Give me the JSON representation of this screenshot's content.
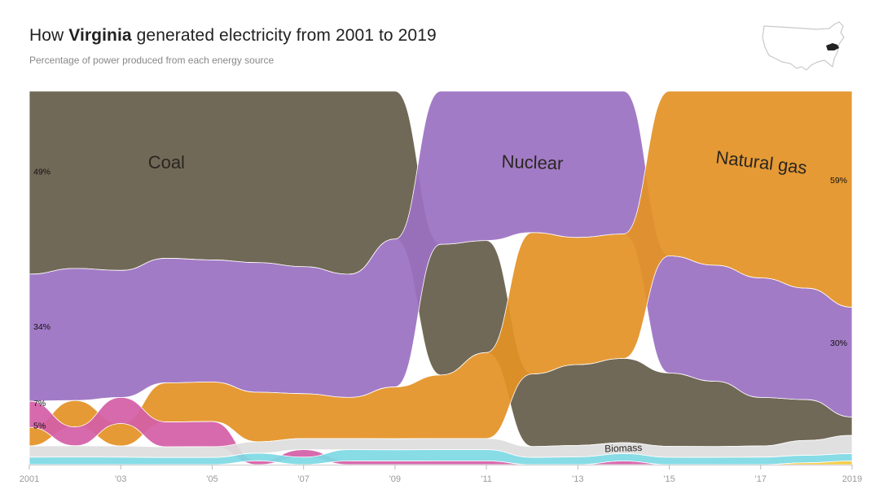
{
  "header": {
    "title_prefix": "How ",
    "title_state": "Virginia",
    "title_suffix": " generated electricity from 2001 to 2019",
    "subtitle": "Percentage of power produced from each energy source"
  },
  "colors": {
    "coal": "#665e4a",
    "nuclear": "#9b71c2",
    "natural_gas": "#e39226",
    "other": "#d45fa7",
    "biomass": "#dedede",
    "hydro": "#7ed9e4",
    "solar": "#f3c83c",
    "map_outline": "#c9c9c9",
    "map_highlight": "#222222"
  },
  "chart_data": {
    "type": "area",
    "chart_kind": "ranked streamgraph (bump area chart)",
    "x": [
      2001,
      2002,
      2003,
      2004,
      2005,
      2006,
      2007,
      2008,
      2009,
      2010,
      2011,
      2012,
      2013,
      2014,
      2015,
      2016,
      2017,
      2018,
      2019
    ],
    "ylim": [
      0,
      100
    ],
    "series": [
      {
        "key": "coal",
        "name": "Coal",
        "values": [
          49,
          47,
          48,
          47,
          47,
          45,
          47,
          49,
          40,
          35,
          30,
          20,
          21,
          23,
          20,
          18,
          13,
          11,
          5
        ]
      },
      {
        "key": "nuclear",
        "name": "Nuclear",
        "values": [
          34,
          35,
          34,
          35,
          34,
          34,
          34,
          33,
          40,
          41,
          40,
          39,
          38,
          39,
          32,
          32,
          32,
          30,
          30
        ]
      },
      {
        "key": "natural_gas",
        "name": "Natural gas",
        "values": [
          5,
          7,
          6,
          11,
          11,
          13,
          12,
          11,
          14,
          17,
          23,
          39,
          33,
          34,
          45,
          48,
          50,
          53,
          59
        ]
      },
      {
        "key": "other",
        "name": "",
        "values": [
          7,
          5,
          7,
          7,
          7,
          1,
          2,
          1,
          1,
          1,
          1,
          0,
          0,
          1,
          0,
          0,
          0,
          0,
          0
        ]
      },
      {
        "key": "biomass",
        "name": "Biomass",
        "values": [
          3,
          3,
          3,
          3,
          3,
          3,
          3,
          3,
          3,
          3,
          3,
          3,
          3,
          3,
          3,
          3,
          3,
          4,
          5
        ]
      },
      {
        "key": "hydro",
        "name": "",
        "values": [
          2,
          2,
          2,
          2,
          2,
          2,
          2,
          3,
          3,
          3,
          3,
          2,
          2,
          2,
          2,
          2,
          2,
          2,
          2
        ]
      },
      {
        "key": "solar",
        "name": "",
        "values": [
          0,
          0,
          0,
          0,
          0,
          0,
          0,
          0,
          0,
          0,
          0,
          0,
          0,
          0,
          0,
          0,
          0,
          0.5,
          1
        ]
      }
    ],
    "tick_labels": [
      "2001",
      "'03",
      "'05",
      "'07",
      "'09",
      "'11",
      "'13",
      "'15",
      "'17",
      "2019"
    ],
    "tick_years": [
      2001,
      2003,
      2005,
      2007,
      2009,
      2011,
      2013,
      2015,
      2017,
      2019
    ],
    "value_labels": [
      {
        "series": "coal",
        "year": 2001,
        "text": "49%"
      },
      {
        "series": "nuclear",
        "year": 2001,
        "text": "34%"
      },
      {
        "series": "other",
        "year": 2001,
        "text": "7%"
      },
      {
        "series": "natural_gas",
        "year": 2001,
        "text": "5%"
      },
      {
        "series": "natural_gas",
        "year": 2019,
        "text": "59%"
      },
      {
        "series": "nuclear",
        "year": 2019,
        "text": "30%"
      }
    ],
    "series_labels": [
      {
        "series": "coal",
        "text": "Coal",
        "rotate": 0
      },
      {
        "series": "nuclear",
        "text": "Nuclear",
        "rotate": 2
      },
      {
        "series": "natural_gas",
        "text": "Natural gas",
        "rotate": 7
      },
      {
        "series": "biomass",
        "text": "Biomass",
        "rotate": -2
      }
    ]
  }
}
